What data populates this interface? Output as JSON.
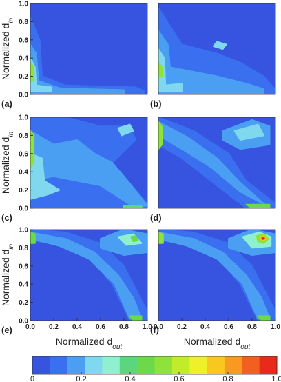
{
  "chart_data": [
    {
      "type": "contour",
      "label": "(a)",
      "xlim": [
        0,
        1
      ],
      "ylim": [
        0,
        1
      ],
      "ylabel": "Normalized d",
      "ylabel_sub": "in",
      "yticks": [
        {
          "value": 0,
          "label": "0.0"
        },
        0.2,
        0.4,
        0.6,
        0.8,
        {
          "value": 1,
          "label": "1.0"
        }
      ],
      "regions": [
        {
          "z": 0.1,
          "x": [
            0,
            0.08,
            0.1,
            0.3,
            0.6,
            0.9,
            0.97,
            0.97,
            0
          ],
          "y": [
            0.85,
            0.6,
            0.2,
            0.1,
            0.09,
            0.08,
            0.04,
            0,
            0
          ]
        },
        {
          "z": 0.18,
          "x": [
            0,
            0.05,
            0.07,
            0.25,
            0.5,
            0.8,
            0.8,
            0
          ],
          "y": [
            0.55,
            0.45,
            0.15,
            0.07,
            0.06,
            0.05,
            0.01,
            0.01
          ]
        },
        {
          "z": 0.28,
          "x": [
            0,
            0.04,
            0.05,
            0.18,
            0.18,
            0
          ],
          "y": [
            0.4,
            0.3,
            0.1,
            0.08,
            0.03,
            0.03
          ]
        },
        {
          "z": 0.5,
          "x": [
            0,
            0.03,
            0.03,
            0
          ],
          "y": [
            0.35,
            0.3,
            0.15,
            0.15
          ]
        }
      ]
    },
    {
      "type": "contour",
      "label": "(b)",
      "xlim": [
        0,
        1
      ],
      "ylim": [
        0,
        1
      ],
      "regions": [
        {
          "z": 0.1,
          "x": [
            0,
            0.1,
            0.2,
            0.5,
            0.7,
            0.9,
            1,
            1,
            0
          ],
          "y": [
            0.95,
            0.75,
            0.55,
            0.45,
            0.35,
            0.2,
            0.05,
            0,
            0
          ]
        },
        {
          "z": 0.18,
          "x": [
            0,
            0.08,
            0.1,
            0.3,
            0.5,
            0.75,
            0.9,
            0.9,
            0
          ],
          "y": [
            0.7,
            0.55,
            0.3,
            0.25,
            0.2,
            0.12,
            0.06,
            0.01,
            0.01
          ]
        },
        {
          "z": 0.28,
          "x": [
            0,
            0.05,
            0.06,
            0.2,
            0.2,
            0
          ],
          "y": [
            0.5,
            0.4,
            0.1,
            0.12,
            0.03,
            0.03
          ]
        },
        {
          "z": 0.5,
          "x": [
            0,
            0.03,
            0.03,
            0
          ],
          "y": [
            0.35,
            0.3,
            0.2,
            0.2
          ]
        },
        {
          "z": 0.28,
          "x": [
            0.5,
            0.58,
            0.55,
            0.47
          ],
          "y": [
            0.58,
            0.55,
            0.5,
            0.53
          ]
        }
      ]
    },
    {
      "type": "contour",
      "label": "(c)",
      "xlim": [
        0,
        1
      ],
      "ylim": [
        0,
        1
      ],
      "ylabel": "Normalized d",
      "ylabel_sub": "in",
      "yticks": [
        {
          "value": 0,
          "label": "0.0"
        },
        0.2,
        0.4,
        0.6,
        0.8,
        {
          "value": 1,
          "label": "1.0"
        }
      ],
      "regions": [
        {
          "z": 0.1,
          "x": [
            0,
            0.3,
            0.6,
            0.85,
            0.9,
            0.7,
            1,
            1,
            0
          ],
          "y": [
            1,
            1,
            0.9,
            0.9,
            0.75,
            0.5,
            0.05,
            0,
            0
          ]
        },
        {
          "z": 0.18,
          "x": [
            0,
            0.2,
            0.4,
            0.55,
            0.7,
            0.8,
            1,
            0.9,
            0.6,
            0.4,
            0.2,
            0
          ],
          "y": [
            0.85,
            0.7,
            0.75,
            0.6,
            0.5,
            0.35,
            0.03,
            0,
            0.25,
            0.3,
            0.35,
            0.3
          ]
        },
        {
          "z": 0.28,
          "x": [
            0,
            0.1,
            0.12,
            0.25,
            0.15,
            0
          ],
          "y": [
            0.6,
            0.55,
            0.3,
            0.2,
            0.15,
            0.1
          ]
        },
        {
          "z": 0.5,
          "x": [
            0,
            0.03,
            0.03,
            0
          ],
          "y": [
            0.85,
            0.8,
            0.5,
            0.45
          ]
        },
        {
          "z": 0.25,
          "x": [
            0.75,
            0.85,
            0.88,
            0.78
          ],
          "y": [
            0.88,
            0.92,
            0.85,
            0.8
          ]
        },
        {
          "z": 0.4,
          "x": [
            0.8,
            0.95,
            0.95,
            0.8
          ],
          "y": [
            0.03,
            0.03,
            0,
            0
          ]
        }
      ]
    },
    {
      "type": "contour",
      "label": "(d)",
      "xlim": [
        0,
        1
      ],
      "ylim": [
        0,
        1
      ],
      "regions": [
        {
          "z": 0.1,
          "x": [
            0,
            0.3,
            0.6,
            0.75,
            1,
            1,
            0.75,
            0.45,
            0.2,
            0
          ],
          "y": [
            1,
            0.85,
            0.6,
            0.3,
            0.05,
            0,
            0,
            0.3,
            0.55,
            0.7
          ]
        },
        {
          "z": 0.18,
          "x": [
            0.55,
            0.8,
            0.95,
            0.95,
            0.7,
            0.55
          ],
          "y": [
            0.85,
            0.97,
            0.9,
            0.7,
            0.65,
            0.75
          ]
        },
        {
          "z": 0.25,
          "x": [
            0.65,
            0.85,
            0.9,
            0.7
          ],
          "y": [
            0.85,
            0.92,
            0.8,
            0.75
          ]
        },
        {
          "z": 0.2,
          "x": [
            0,
            0.25,
            0.5,
            0.7,
            0.9,
            0.95,
            0.7,
            0.45,
            0.2,
            0
          ],
          "y": [
            0.95,
            0.78,
            0.55,
            0.28,
            0.05,
            0.01,
            0.18,
            0.45,
            0.65,
            0.8
          ]
        },
        {
          "z": 0.5,
          "x": [
            0,
            0.03,
            0.03,
            0
          ],
          "y": [
            0.95,
            0.9,
            0.7,
            0.65
          ]
        },
        {
          "z": 0.45,
          "x": [
            0.75,
            0.95,
            0.95,
            0.8
          ],
          "y": [
            0.04,
            0.04,
            0,
            0
          ]
        }
      ]
    },
    {
      "type": "contour",
      "label": "(e)",
      "xlim": [
        0,
        1
      ],
      "ylim": [
        0,
        1
      ],
      "ylabel": "Normalized d",
      "ylabel_sub": "in",
      "xlabel": "Normalized d",
      "xlabel_sub": "out",
      "yticks": [
        {
          "value": 0,
          "label": "0.0"
        },
        0.2,
        0.4,
        0.6,
        0.8,
        {
          "value": 1,
          "label": "1.0"
        }
      ],
      "xticks": [
        {
          "value": 0,
          "label": "0.0"
        },
        0.2,
        0.4,
        0.6,
        0.8,
        {
          "value": 1,
          "label": "1.0"
        }
      ],
      "regions": [
        {
          "z": 0.1,
          "x": [
            0,
            0.3,
            0.6,
            0.8,
            0.9,
            1,
            1,
            0.85,
            0.7,
            0.5,
            0.2,
            0
          ],
          "y": [
            1,
            0.97,
            0.85,
            0.6,
            0.35,
            0.1,
            0,
            0,
            0.4,
            0.7,
            0.85,
            0.88
          ]
        },
        {
          "z": 0.2,
          "x": [
            0,
            0.3,
            0.55,
            0.75,
            0.88,
            0.95,
            0.85,
            0.72,
            0.5,
            0.25,
            0
          ],
          "y": [
            0.97,
            0.9,
            0.75,
            0.5,
            0.25,
            0.02,
            0.02,
            0.4,
            0.68,
            0.82,
            0.9
          ]
        },
        {
          "z": 0.18,
          "x": [
            0.6,
            0.8,
            1,
            1,
            0.8,
            0.6
          ],
          "y": [
            0.9,
            1,
            0.95,
            0.75,
            0.72,
            0.8
          ]
        },
        {
          "z": 0.3,
          "x": [
            0.75,
            0.88,
            0.95,
            0.82
          ],
          "y": [
            0.92,
            0.95,
            0.85,
            0.83
          ]
        },
        {
          "z": 0.45,
          "x": [
            0.86,
            0.9,
            0.92,
            0.88
          ],
          "y": [
            0.92,
            0.93,
            0.88,
            0.87
          ]
        },
        {
          "z": 0.45,
          "x": [
            0,
            0.04,
            0.04,
            0
          ],
          "y": [
            0.97,
            0.95,
            0.85,
            0.85
          ]
        },
        {
          "z": 0.45,
          "x": [
            0.85,
            0.95,
            0.95,
            0.88
          ],
          "y": [
            0.05,
            0.05,
            0,
            0
          ]
        }
      ]
    },
    {
      "type": "contour",
      "label": "(f)",
      "xlim": [
        0,
        1
      ],
      "ylim": [
        0,
        1
      ],
      "xlabel": "Normalized d",
      "xlabel_sub": "out",
      "xticks": [
        {
          "value": 0,
          "label": "0.0"
        },
        0.2,
        0.4,
        0.6,
        0.8,
        {
          "value": 1,
          "label": "1.0"
        }
      ],
      "regions": [
        {
          "z": 0.1,
          "x": [
            0,
            0.3,
            0.6,
            0.8,
            0.9,
            1,
            1,
            0.85,
            0.7,
            0.5,
            0.2,
            0
          ],
          "y": [
            1,
            0.97,
            0.85,
            0.6,
            0.35,
            0.1,
            0,
            0,
            0.4,
            0.7,
            0.85,
            0.88
          ]
        },
        {
          "z": 0.2,
          "x": [
            0,
            0.3,
            0.55,
            0.75,
            0.88,
            0.95,
            0.85,
            0.72,
            0.5,
            0.25,
            0
          ],
          "y": [
            0.97,
            0.9,
            0.75,
            0.5,
            0.25,
            0.02,
            0.02,
            0.4,
            0.68,
            0.82,
            0.9
          ]
        },
        {
          "z": 0.18,
          "x": [
            0.6,
            0.8,
            1,
            1,
            0.8,
            0.6
          ],
          "y": [
            0.9,
            1,
            0.95,
            0.75,
            0.72,
            0.8
          ]
        },
        {
          "z": 0.3,
          "x": [
            0.72,
            0.86,
            0.96,
            0.96,
            0.8
          ],
          "y": [
            0.92,
            0.97,
            0.92,
            0.82,
            0.8
          ]
        },
        {
          "z": 0.5,
          "x": [
            0.84,
            0.9,
            0.94,
            0.9,
            0.85
          ],
          "y": [
            0.93,
            0.95,
            0.9,
            0.85,
            0.87
          ]
        },
        {
          "z": 0.75,
          "x": [
            0.87,
            0.9,
            0.92,
            0.89
          ],
          "y": [
            0.92,
            0.93,
            0.9,
            0.88
          ]
        },
        {
          "z": 0.95,
          "x": [
            0.885,
            0.9,
            0.905,
            0.89
          ],
          "y": [
            0.91,
            0.915,
            0.9,
            0.895
          ]
        },
        {
          "z": 0.5,
          "x": [
            0,
            0.04,
            0.04,
            0
          ],
          "y": [
            0.97,
            0.95,
            0.85,
            0.85
          ]
        },
        {
          "z": 0.45,
          "x": [
            0.85,
            0.95,
            0.95,
            0.88
          ],
          "y": [
            0.05,
            0.05,
            0,
            0
          ]
        }
      ]
    },
    {
      "type": "colorbar",
      "xlim": [
        0,
        1
      ],
      "colors": [
        "#3654e0",
        "#3a6ff0",
        "#4b9ff2",
        "#7fd8ee",
        "#8ff0d0",
        "#5cd67e",
        "#6cd84a",
        "#8ee23a",
        "#c0ec2a",
        "#eef02a",
        "#f8c820",
        "#f89a20",
        "#f26020",
        "#e82a1a"
      ],
      "xticks": [
        0,
        0.2,
        0.4,
        0.6,
        0.8,
        {
          "value": 1,
          "label": "1.0"
        }
      ]
    }
  ]
}
